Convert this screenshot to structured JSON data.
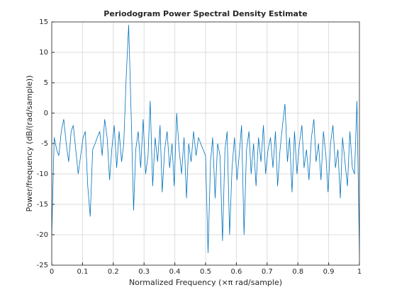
{
  "chart_data": {
    "type": "line",
    "title": "Periodogram Power Spectral Density Estimate",
    "x_label": "Normalized Frequency  (×π rad/sample)",
    "y_label": "Power/frequency (dB/(rad/sample))",
    "x": [
      0,
      0.008,
      0.016,
      0.023,
      0.031,
      0.039,
      0.047,
      0.055,
      0.063,
      0.07,
      0.078,
      0.086,
      0.094,
      0.102,
      0.109,
      0.117,
      0.125,
      0.133,
      0.141,
      0.148,
      0.156,
      0.164,
      0.172,
      0.18,
      0.188,
      0.195,
      0.203,
      0.211,
      0.219,
      0.227,
      0.234,
      0.242,
      0.25,
      0.258,
      0.266,
      0.273,
      0.281,
      0.289,
      0.297,
      0.305,
      0.313,
      0.32,
      0.328,
      0.336,
      0.344,
      0.352,
      0.359,
      0.367,
      0.375,
      0.383,
      0.391,
      0.398,
      0.406,
      0.414,
      0.422,
      0.43,
      0.438,
      0.445,
      0.453,
      0.461,
      0.469,
      0.477,
      0.484,
      0.492,
      0.5,
      0.508,
      0.516,
      0.523,
      0.531,
      0.539,
      0.547,
      0.555,
      0.563,
      0.57,
      0.578,
      0.586,
      0.594,
      0.602,
      0.609,
      0.617,
      0.625,
      0.633,
      0.641,
      0.648,
      0.656,
      0.664,
      0.672,
      0.68,
      0.688,
      0.695,
      0.703,
      0.711,
      0.719,
      0.727,
      0.734,
      0.742,
      0.75,
      0.758,
      0.766,
      0.773,
      0.781,
      0.789,
      0.797,
      0.805,
      0.813,
      0.82,
      0.828,
      0.836,
      0.844,
      0.852,
      0.859,
      0.867,
      0.875,
      0.883,
      0.891,
      0.898,
      0.906,
      0.914,
      0.922,
      0.93,
      0.938,
      0.945,
      0.953,
      0.961,
      0.969,
      0.977,
      0.984,
      0.992,
      1
    ],
    "series": [
      {
        "color": "#0072bd",
        "values": [
          -20,
          -4,
          -6,
          -7,
          -3,
          -1,
          -5,
          -8,
          -3,
          -2,
          -6,
          -10,
          -7,
          -4,
          -3,
          -12,
          -17,
          -6,
          -5,
          -4,
          -3,
          -7,
          -1,
          -4,
          -11,
          -6,
          -2,
          -9,
          -3,
          -8,
          -5,
          6,
          14.5,
          0,
          -16,
          -6,
          -3,
          -9,
          -1,
          -10,
          -7,
          2,
          -12,
          -4,
          -8,
          -2,
          -13,
          -6,
          -3,
          -9,
          -5,
          -12,
          0,
          -6,
          -10,
          -4,
          -14,
          -5,
          -8,
          -3,
          -7,
          -4,
          -5,
          -6,
          -7,
          -23,
          -8,
          -4,
          -14,
          -5,
          -7,
          -21,
          -6,
          -3,
          -20,
          -9,
          -4,
          -11,
          -7,
          -2,
          -20,
          -6,
          -3,
          -10,
          -5,
          -12,
          -4,
          -8,
          -2,
          -10,
          -6,
          -4,
          -9,
          -3,
          -12,
          -6,
          -2,
          1.5,
          -8,
          -4,
          -13,
          -3,
          -10,
          -5,
          -2,
          -9,
          -6,
          -11,
          -4,
          -1,
          -8,
          -5,
          -11,
          -3,
          -7,
          -13,
          -5,
          -2,
          -9,
          -6,
          -14,
          -4,
          -8,
          -12,
          -3,
          -9,
          -10,
          2,
          -23
        ]
      }
    ],
    "xlim": [
      0,
      1
    ],
    "xticks": [
      0,
      0.1,
      0.2,
      0.3,
      0.4,
      0.5,
      0.6,
      0.7,
      0.8,
      0.9,
      1
    ],
    "ylim": [
      -25,
      15
    ],
    "yticks": [
      -25,
      -20,
      -15,
      -10,
      -5,
      0,
      5,
      10,
      15
    ],
    "grid": true
  }
}
